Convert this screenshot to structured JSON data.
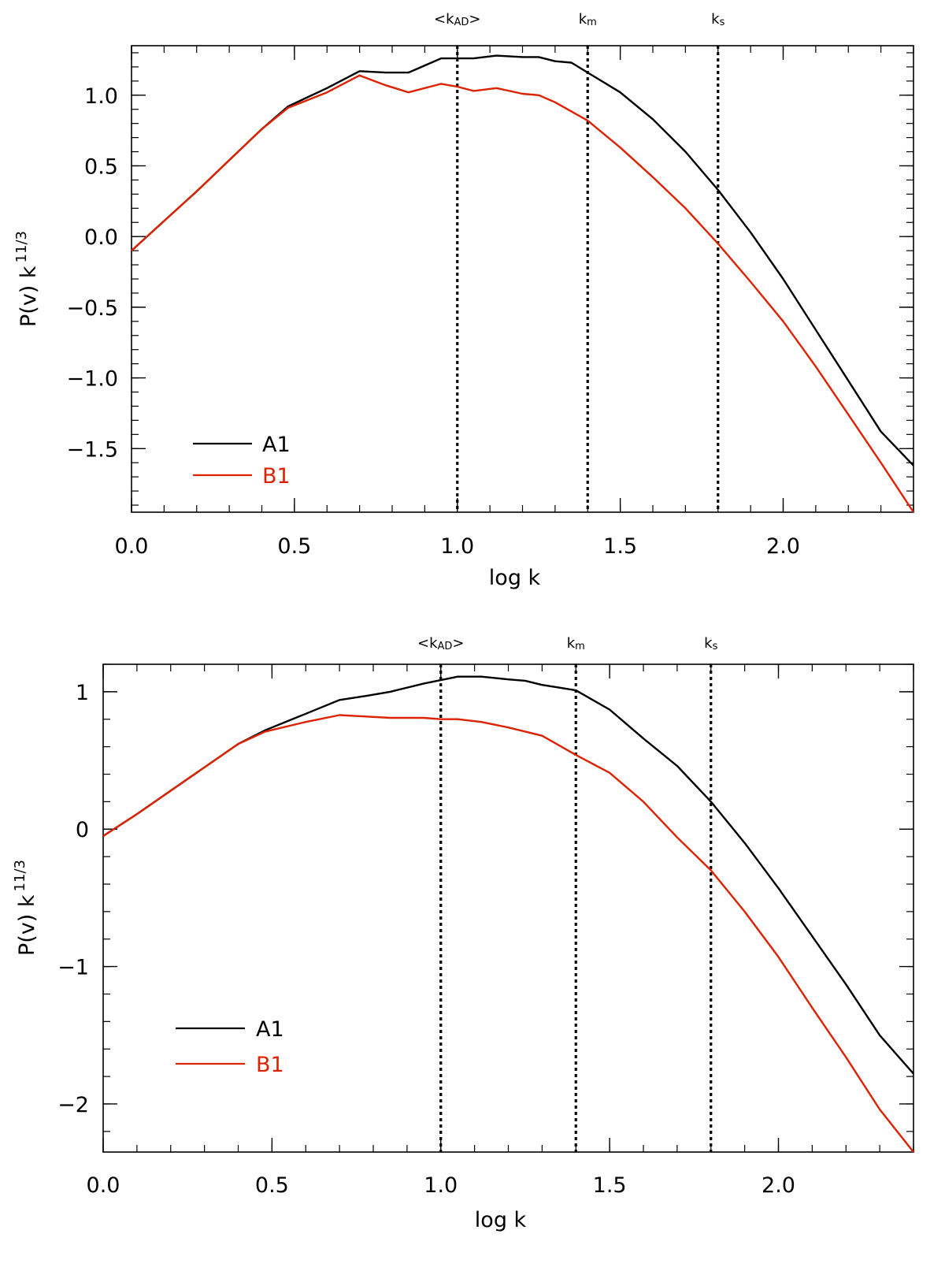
{
  "chart_data": [
    {
      "type": "line",
      "xlabel": "log k",
      "ylabel": "P(v) k",
      "ylabel_sup": "11/3",
      "xlim": [
        0,
        2.4
      ],
      "ylim": [
        -1.95,
        1.35
      ],
      "xticks": [
        0.0,
        0.5,
        1.0,
        1.5,
        2.0
      ],
      "xtick_labels": [
        "0.0",
        "0.5",
        "1.0",
        "1.5",
        "2.0"
      ],
      "yticks": [
        -1.5,
        -1.0,
        -0.5,
        0.0,
        0.5,
        1.0
      ],
      "ytick_labels": [
        "−1.5",
        "−1.0",
        "−0.5",
        "0.0",
        "0.5",
        "1.0"
      ],
      "x_minor_step": 0.1,
      "y_minor_step": 0.1,
      "vlines": [
        {
          "x": 1.0,
          "label": "<k",
          "sub": "AD",
          "suffix": ">"
        },
        {
          "x": 1.4,
          "label": "k",
          "sub": "m",
          "suffix": ""
        },
        {
          "x": 1.8,
          "label": "k",
          "sub": "s",
          "suffix": ""
        }
      ],
      "legend_position": "bottom-left",
      "series": [
        {
          "name": "A1",
          "color": "#000000",
          "x": [
            0,
            0.1,
            0.2,
            0.3,
            0.4,
            0.48,
            0.6,
            0.7,
            0.78,
            0.85,
            0.95,
            1.05,
            1.12,
            1.2,
            1.25,
            1.3,
            1.35,
            1.4,
            1.5,
            1.6,
            1.7,
            1.8,
            1.9,
            2.0,
            2.1,
            2.2,
            2.3,
            2.4
          ],
          "y": [
            -0.1,
            0.11,
            0.32,
            0.54,
            0.76,
            0.92,
            1.05,
            1.17,
            1.16,
            1.16,
            1.26,
            1.26,
            1.28,
            1.27,
            1.27,
            1.24,
            1.23,
            1.16,
            1.02,
            0.83,
            0.6,
            0.33,
            0.03,
            -0.3,
            -0.66,
            -1.02,
            -1.38,
            -1.62
          ]
        },
        {
          "name": "B1",
          "color": "#dd2200",
          "x": [
            0,
            0.1,
            0.2,
            0.3,
            0.4,
            0.48,
            0.6,
            0.7,
            0.78,
            0.85,
            0.95,
            1.0,
            1.05,
            1.12,
            1.2,
            1.25,
            1.3,
            1.4,
            1.5,
            1.6,
            1.7,
            1.8,
            1.9,
            2.0,
            2.1,
            2.2,
            2.3,
            2.4
          ],
          "y": [
            -0.1,
            0.11,
            0.32,
            0.54,
            0.76,
            0.91,
            1.02,
            1.14,
            1.07,
            1.02,
            1.08,
            1.06,
            1.03,
            1.05,
            1.01,
            1.0,
            0.95,
            0.82,
            0.63,
            0.42,
            0.2,
            -0.05,
            -0.32,
            -0.6,
            -0.92,
            -1.26,
            -1.6,
            -1.95
          ]
        }
      ]
    },
    {
      "type": "line",
      "xlabel": "log k",
      "ylabel": "P(v) k",
      "ylabel_sup": "11/3",
      "xlim": [
        0,
        2.4
      ],
      "ylim": [
        -2.35,
        1.2
      ],
      "xticks": [
        0.0,
        0.5,
        1.0,
        1.5,
        2.0
      ],
      "xtick_labels": [
        "0.0",
        "0.5",
        "1.0",
        "1.5",
        "2.0"
      ],
      "yticks": [
        -2,
        -1,
        0,
        1
      ],
      "ytick_labels": [
        "−2",
        "−1",
        "0",
        "1"
      ],
      "x_minor_step": 0.1,
      "y_minor_step": 0.2,
      "vlines": [
        {
          "x": 1.0,
          "label": "<k",
          "sub": "AD",
          "suffix": ">"
        },
        {
          "x": 1.4,
          "label": "k",
          "sub": "m",
          "suffix": ""
        },
        {
          "x": 1.8,
          "label": "k",
          "sub": "s",
          "suffix": ""
        }
      ],
      "legend_position": "bottom-left",
      "series": [
        {
          "name": "A1",
          "color": "#000000",
          "x": [
            0,
            0.1,
            0.2,
            0.3,
            0.4,
            0.48,
            0.6,
            0.7,
            0.78,
            0.85,
            0.95,
            1.05,
            1.12,
            1.2,
            1.25,
            1.3,
            1.35,
            1.4,
            1.5,
            1.6,
            1.7,
            1.8,
            1.9,
            2.0,
            2.1,
            2.2,
            2.3,
            2.4
          ],
          "y": [
            -0.05,
            0.11,
            0.28,
            0.45,
            0.62,
            0.72,
            0.84,
            0.94,
            0.97,
            1.0,
            1.06,
            1.11,
            1.11,
            1.09,
            1.08,
            1.05,
            1.03,
            1.01,
            0.87,
            0.66,
            0.46,
            0.2,
            -0.1,
            -0.43,
            -0.78,
            -1.13,
            -1.5,
            -1.78
          ]
        },
        {
          "name": "B1",
          "color": "#dd2200",
          "x": [
            0,
            0.1,
            0.2,
            0.3,
            0.4,
            0.48,
            0.6,
            0.7,
            0.78,
            0.85,
            0.95,
            1.0,
            1.05,
            1.12,
            1.2,
            1.25,
            1.3,
            1.4,
            1.5,
            1.6,
            1.7,
            1.8,
            1.9,
            2.0,
            2.1,
            2.2,
            2.3,
            2.4
          ],
          "y": [
            -0.05,
            0.11,
            0.28,
            0.45,
            0.62,
            0.71,
            0.78,
            0.83,
            0.82,
            0.81,
            0.81,
            0.8,
            0.8,
            0.78,
            0.74,
            0.71,
            0.68,
            0.54,
            0.41,
            0.2,
            -0.06,
            -0.3,
            -0.6,
            -0.93,
            -1.3,
            -1.66,
            -2.04,
            -2.35
          ]
        }
      ]
    }
  ]
}
